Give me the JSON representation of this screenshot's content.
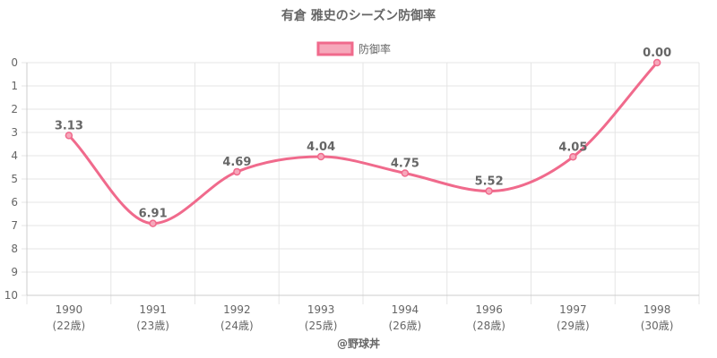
{
  "chart_data": {
    "type": "line",
    "title": "有倉 雅史のシーズン防御率",
    "legend": {
      "label": "防御率",
      "position": "top-center"
    },
    "categories": [
      "1990",
      "1991",
      "1992",
      "1993",
      "1994",
      "1996",
      "1997",
      "1998"
    ],
    "category_sublabels": [
      "(22歳)",
      "(23歳)",
      "(24歳)",
      "(25歳)",
      "(26歳)",
      "(28歳)",
      "(29歳)",
      "(30歳)"
    ],
    "series": [
      {
        "name": "防御率",
        "values": [
          3.13,
          6.91,
          4.69,
          4.04,
          4.75,
          5.52,
          4.05,
          0.0
        ],
        "labels": [
          "3.13",
          "6.91",
          "4.69",
          "4.04",
          "4.75",
          "5.52",
          "4.05",
          "0.00"
        ]
      }
    ],
    "y_axis": {
      "min": 0,
      "max": 10,
      "reversed": true,
      "ticks": [
        0,
        1,
        2,
        3,
        4,
        5,
        6,
        7,
        8,
        9,
        10
      ]
    },
    "grid": true,
    "colors": {
      "line": "#f06a8c",
      "fill": "#f6a8bb",
      "text": "#666666",
      "grid": "#e5e5e5"
    }
  },
  "footer": {
    "credit": "@野球丼"
  }
}
